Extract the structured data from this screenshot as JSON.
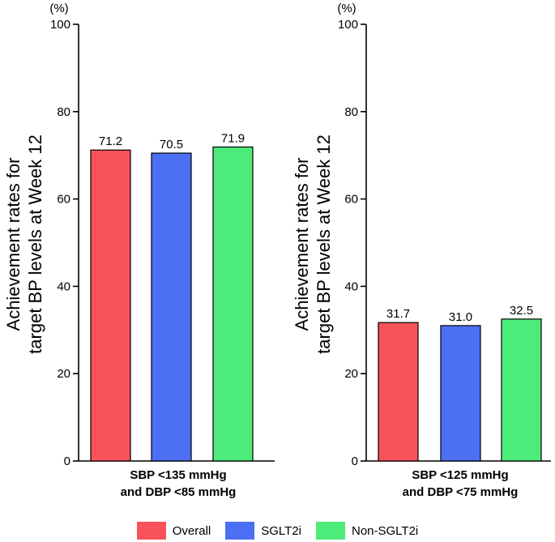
{
  "chart_data": [
    {
      "type": "bar",
      "unit_label": "(%)",
      "ylabel": "Achievement rates for target BP levels at Week 12",
      "ylabel_lines": [
        "Achievement rates for",
        "target BP levels at Week 12"
      ],
      "xlabel_lines": [
        "SBP <135 mmHg",
        "and DBP <85 mmHg"
      ],
      "ylim": [
        0,
        100
      ],
      "yticks": [
        0,
        20,
        40,
        60,
        80,
        100
      ],
      "series": [
        {
          "name": "Overall",
          "values": [
            71.2
          ],
          "labels": [
            "71.2"
          ]
        },
        {
          "name": "SGLT2i",
          "values": [
            70.5
          ],
          "labels": [
            "70.5"
          ]
        },
        {
          "name": "Non-SGLT2i",
          "values": [
            71.9
          ],
          "labels": [
            "71.9"
          ]
        }
      ]
    },
    {
      "type": "bar",
      "unit_label": "(%)",
      "ylabel": "Achievement rates for target BP levels at Week 12",
      "ylabel_lines": [
        "Achievement rates for",
        "target BP levels at Week 12"
      ],
      "xlabel_lines": [
        "SBP <125 mmHg",
        "and DBP <75 mmHg"
      ],
      "ylim": [
        0,
        100
      ],
      "yticks": [
        0,
        20,
        40,
        60,
        80,
        100
      ],
      "series": [
        {
          "name": "Overall",
          "values": [
            31.7
          ],
          "labels": [
            "31.7"
          ]
        },
        {
          "name": "SGLT2i",
          "values": [
            31.0
          ],
          "labels": [
            "31.0"
          ]
        },
        {
          "name": "Non-SGLT2i",
          "values": [
            32.5
          ],
          "labels": [
            "32.5"
          ]
        }
      ]
    }
  ],
  "legend": [
    {
      "label": "Overall",
      "color": "#f7525a"
    },
    {
      "label": "SGLT2i",
      "color": "#4d6ff3"
    },
    {
      "label": "Non-SGLT2i",
      "color": "#4deb7a"
    }
  ]
}
